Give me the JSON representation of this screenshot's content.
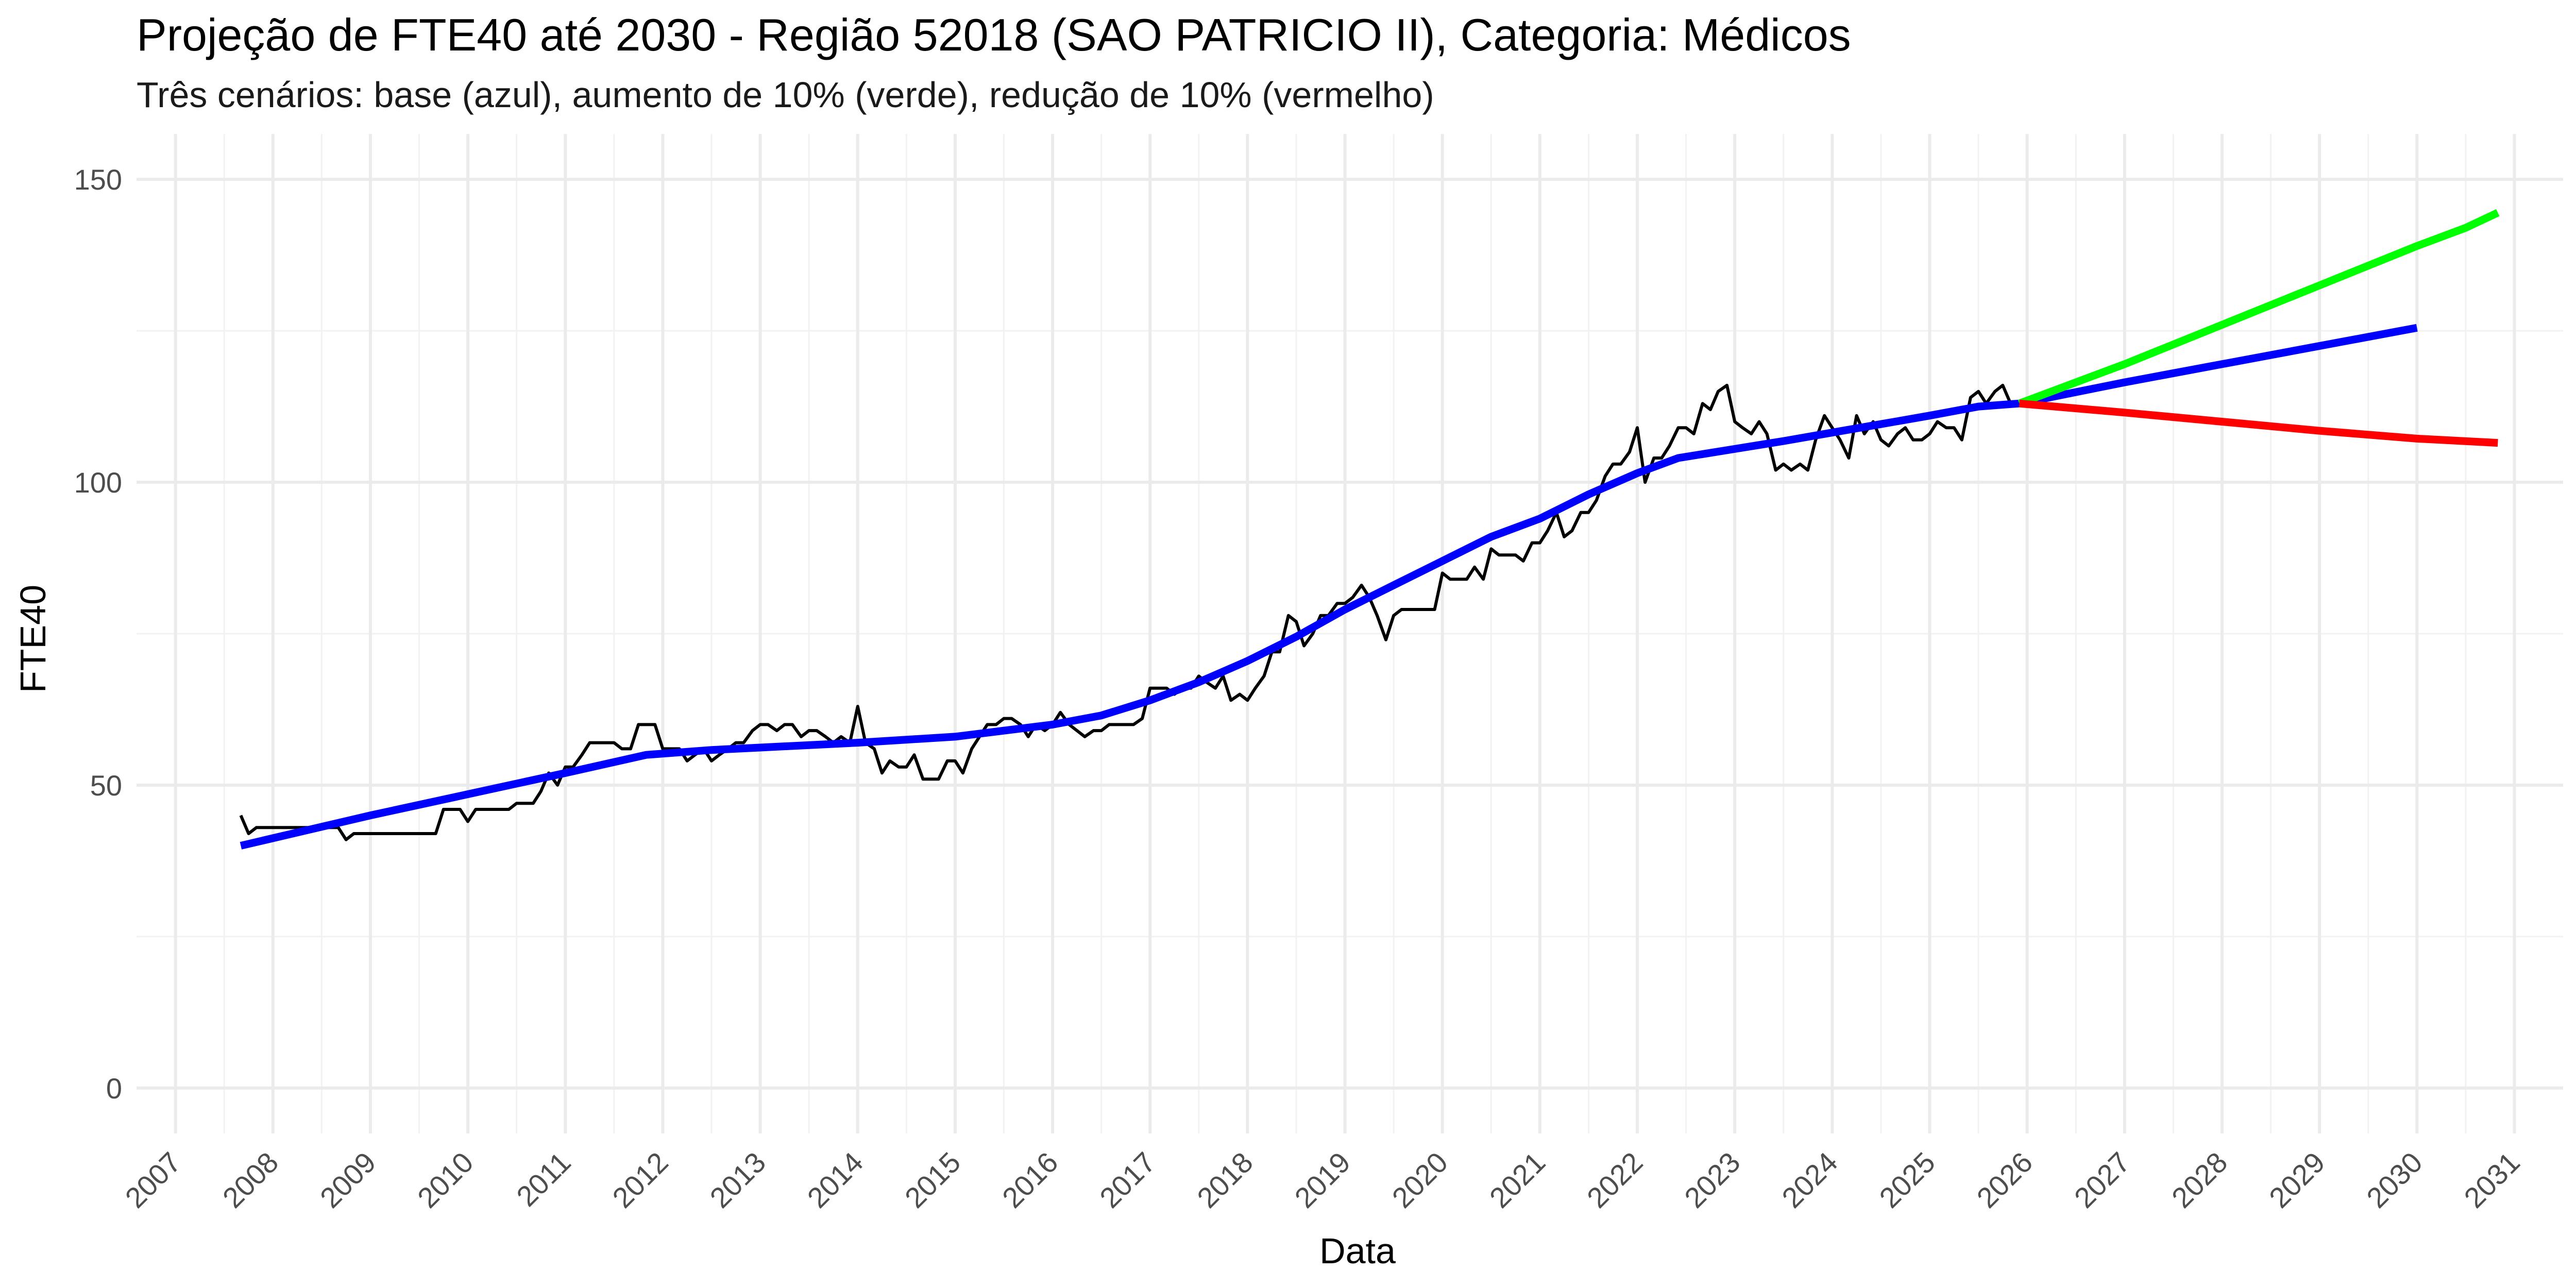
{
  "chart_data": {
    "type": "line",
    "title": "Projeção de FTE40 até 2030 - Região 52018 (SAO PATRICIO II), Categoria: Médicos",
    "subtitle": "Três cenários: base (azul), aumento de 10% (verde), redução de 10% (vermelho)",
    "xlabel": "Data",
    "ylabel": "FTE40",
    "xlim": [
      2006.6,
      2031.5
    ],
    "ylim": [
      -7.5,
      157.5
    ],
    "x_ticks": [
      "2007",
      "2008",
      "2009",
      "2010",
      "2011",
      "2012",
      "2013",
      "2014",
      "2015",
      "2016",
      "2017",
      "2018",
      "2019",
      "2020",
      "2021",
      "2022",
      "2023",
      "2024",
      "2025",
      "2026",
      "2027",
      "2028",
      "2029",
      "2030",
      "2031"
    ],
    "y_ticks": [
      0,
      50,
      100,
      150
    ],
    "grid": true,
    "legend": "none",
    "series": [
      {
        "color": "#000000",
        "points": [
          [
            2007.67,
            45
          ],
          [
            2007.75,
            42
          ],
          [
            2007.83,
            43
          ],
          [
            2007.92,
            43
          ],
          [
            2008.0,
            43
          ],
          [
            2008.08,
            43
          ],
          [
            2008.17,
            43
          ],
          [
            2008.25,
            43
          ],
          [
            2008.33,
            43
          ],
          [
            2008.42,
            43
          ],
          [
            2008.5,
            43
          ],
          [
            2008.58,
            43
          ],
          [
            2008.67,
            43
          ],
          [
            2008.75,
            41
          ],
          [
            2008.83,
            42
          ],
          [
            2008.92,
            42
          ],
          [
            2009.0,
            42
          ],
          [
            2009.08,
            42
          ],
          [
            2009.17,
            42
          ],
          [
            2009.25,
            42
          ],
          [
            2009.33,
            42
          ],
          [
            2009.42,
            42
          ],
          [
            2009.5,
            42
          ],
          [
            2009.58,
            42
          ],
          [
            2009.67,
            42
          ],
          [
            2009.75,
            46
          ],
          [
            2009.83,
            46
          ],
          [
            2009.92,
            46
          ],
          [
            2010.0,
            44
          ],
          [
            2010.08,
            46
          ],
          [
            2010.17,
            46
          ],
          [
            2010.25,
            46
          ],
          [
            2010.33,
            46
          ],
          [
            2010.42,
            46
          ],
          [
            2010.5,
            47
          ],
          [
            2010.58,
            47
          ],
          [
            2010.67,
            47
          ],
          [
            2010.75,
            49
          ],
          [
            2010.83,
            52
          ],
          [
            2010.92,
            50
          ],
          [
            2011.0,
            53
          ],
          [
            2011.08,
            53
          ],
          [
            2011.17,
            55
          ],
          [
            2011.25,
            57
          ],
          [
            2011.33,
            57
          ],
          [
            2011.42,
            57
          ],
          [
            2011.5,
            57
          ],
          [
            2011.58,
            56
          ],
          [
            2011.67,
            56
          ],
          [
            2011.75,
            60
          ],
          [
            2011.83,
            60
          ],
          [
            2011.92,
            60
          ],
          [
            2012.0,
            56
          ],
          [
            2012.08,
            56
          ],
          [
            2012.17,
            56
          ],
          [
            2012.25,
            54
          ],
          [
            2012.33,
            55
          ],
          [
            2012.42,
            56
          ],
          [
            2012.5,
            54
          ],
          [
            2012.58,
            55
          ],
          [
            2012.67,
            56
          ],
          [
            2012.75,
            57
          ],
          [
            2012.83,
            57
          ],
          [
            2012.92,
            59
          ],
          [
            2013.0,
            60
          ],
          [
            2013.08,
            60
          ],
          [
            2013.17,
            59
          ],
          [
            2013.25,
            60
          ],
          [
            2013.33,
            60
          ],
          [
            2013.42,
            58
          ],
          [
            2013.5,
            59
          ],
          [
            2013.58,
            59
          ],
          [
            2013.67,
            58
          ],
          [
            2013.75,
            57
          ],
          [
            2013.83,
            58
          ],
          [
            2013.92,
            57
          ],
          [
            2014.0,
            63
          ],
          [
            2014.08,
            57
          ],
          [
            2014.17,
            56
          ],
          [
            2014.25,
            52
          ],
          [
            2014.33,
            54
          ],
          [
            2014.42,
            53
          ],
          [
            2014.5,
            53
          ],
          [
            2014.58,
            55
          ],
          [
            2014.67,
            51
          ],
          [
            2014.75,
            51
          ],
          [
            2014.83,
            51
          ],
          [
            2014.92,
            54
          ],
          [
            2015.0,
            54
          ],
          [
            2015.08,
            52
          ],
          [
            2015.17,
            56
          ],
          [
            2015.25,
            58
          ],
          [
            2015.33,
            60
          ],
          [
            2015.42,
            60
          ],
          [
            2015.5,
            61
          ],
          [
            2015.58,
            61
          ],
          [
            2015.67,
            60
          ],
          [
            2015.75,
            58
          ],
          [
            2015.83,
            60
          ],
          [
            2015.92,
            59
          ],
          [
            2016.0,
            60
          ],
          [
            2016.08,
            62
          ],
          [
            2016.17,
            60
          ],
          [
            2016.25,
            59
          ],
          [
            2016.33,
            58
          ],
          [
            2016.42,
            59
          ],
          [
            2016.5,
            59
          ],
          [
            2016.58,
            60
          ],
          [
            2016.67,
            60
          ],
          [
            2016.75,
            60
          ],
          [
            2016.83,
            60
          ],
          [
            2016.92,
            61
          ],
          [
            2017.0,
            66
          ],
          [
            2017.08,
            66
          ],
          [
            2017.17,
            66
          ],
          [
            2017.25,
            65
          ],
          [
            2017.33,
            66
          ],
          [
            2017.42,
            66
          ],
          [
            2017.5,
            68
          ],
          [
            2017.58,
            67
          ],
          [
            2017.67,
            66
          ],
          [
            2017.75,
            68
          ],
          [
            2017.83,
            64
          ],
          [
            2017.92,
            65
          ],
          [
            2018.0,
            64
          ],
          [
            2018.08,
            66
          ],
          [
            2018.17,
            68
          ],
          [
            2018.25,
            72
          ],
          [
            2018.33,
            72
          ],
          [
            2018.42,
            78
          ],
          [
            2018.5,
            77
          ],
          [
            2018.58,
            73
          ],
          [
            2018.67,
            75
          ],
          [
            2018.75,
            78
          ],
          [
            2018.83,
            78
          ],
          [
            2018.92,
            80
          ],
          [
            2019.0,
            80
          ],
          [
            2019.08,
            81
          ],
          [
            2019.17,
            83
          ],
          [
            2019.25,
            81
          ],
          [
            2019.33,
            78
          ],
          [
            2019.42,
            74
          ],
          [
            2019.5,
            78
          ],
          [
            2019.58,
            79
          ],
          [
            2019.67,
            79
          ],
          [
            2019.75,
            79
          ],
          [
            2019.83,
            79
          ],
          [
            2019.92,
            79
          ],
          [
            2020.0,
            85
          ],
          [
            2020.08,
            84
          ],
          [
            2020.17,
            84
          ],
          [
            2020.25,
            84
          ],
          [
            2020.33,
            86
          ],
          [
            2020.42,
            84
          ],
          [
            2020.5,
            89
          ],
          [
            2020.58,
            88
          ],
          [
            2020.67,
            88
          ],
          [
            2020.75,
            88
          ],
          [
            2020.83,
            87
          ],
          [
            2020.92,
            90
          ],
          [
            2021.0,
            90
          ],
          [
            2021.08,
            92
          ],
          [
            2021.17,
            95
          ],
          [
            2021.25,
            91
          ],
          [
            2021.33,
            92
          ],
          [
            2021.42,
            95
          ],
          [
            2021.5,
            95
          ],
          [
            2021.58,
            97
          ],
          [
            2021.67,
            101
          ],
          [
            2021.75,
            103
          ],
          [
            2021.83,
            103
          ],
          [
            2021.92,
            105
          ],
          [
            2022.0,
            109
          ],
          [
            2022.08,
            100
          ],
          [
            2022.17,
            104
          ],
          [
            2022.25,
            104
          ],
          [
            2022.33,
            106
          ],
          [
            2022.42,
            109
          ],
          [
            2022.5,
            109
          ],
          [
            2022.58,
            108
          ],
          [
            2022.67,
            113
          ],
          [
            2022.75,
            112
          ],
          [
            2022.83,
            115
          ],
          [
            2022.92,
            116
          ],
          [
            2023.0,
            110
          ],
          [
            2023.08,
            109
          ],
          [
            2023.17,
            108
          ],
          [
            2023.25,
            110
          ],
          [
            2023.33,
            108
          ],
          [
            2023.42,
            102
          ],
          [
            2023.5,
            103
          ],
          [
            2023.58,
            102
          ],
          [
            2023.67,
            103
          ],
          [
            2023.75,
            102
          ],
          [
            2023.83,
            107
          ],
          [
            2023.92,
            111
          ],
          [
            2024.0,
            109
          ],
          [
            2024.08,
            107
          ],
          [
            2024.17,
            104
          ],
          [
            2024.25,
            111
          ],
          [
            2024.33,
            108
          ],
          [
            2024.42,
            110
          ],
          [
            2024.5,
            107
          ],
          [
            2024.58,
            106
          ],
          [
            2024.67,
            108
          ],
          [
            2024.75,
            109
          ],
          [
            2024.83,
            107
          ],
          [
            2024.92,
            107
          ],
          [
            2025.0,
            108
          ],
          [
            2025.08,
            110
          ],
          [
            2025.17,
            109
          ],
          [
            2025.25,
            109
          ],
          [
            2025.33,
            107
          ],
          [
            2025.42,
            114
          ],
          [
            2025.5,
            115
          ],
          [
            2025.58,
            113
          ],
          [
            2025.67,
            115
          ],
          [
            2025.75,
            116
          ],
          [
            2025.83,
            113
          ]
        ]
      },
      {
        "color": "#0000ff",
        "points": [
          [
            2007.67,
            40
          ],
          [
            2009.0,
            45
          ],
          [
            2010.0,
            48.5
          ],
          [
            2011.0,
            52
          ],
          [
            2011.83,
            55
          ],
          [
            2012.5,
            55.8
          ],
          [
            2013.0,
            56.2
          ],
          [
            2014.0,
            57
          ],
          [
            2015.0,
            58
          ],
          [
            2016.0,
            60
          ],
          [
            2016.5,
            61.5
          ],
          [
            2017.0,
            64
          ],
          [
            2017.5,
            67
          ],
          [
            2018.0,
            70.5
          ],
          [
            2018.5,
            74.5
          ],
          [
            2019.0,
            79
          ],
          [
            2019.5,
            83
          ],
          [
            2020.0,
            87
          ],
          [
            2020.5,
            91
          ],
          [
            2021.0,
            94
          ],
          [
            2021.5,
            98
          ],
          [
            2022.0,
            101.5
          ],
          [
            2022.42,
            104
          ],
          [
            2023.0,
            105.5
          ],
          [
            2023.5,
            106.8
          ],
          [
            2024.0,
            108.2
          ],
          [
            2024.5,
            109.6
          ],
          [
            2025.0,
            111
          ],
          [
            2025.5,
            112.5
          ],
          [
            2025.92,
            113
          ],
          [
            2027.0,
            116.5
          ],
          [
            2028.0,
            119.5
          ],
          [
            2029.0,
            122.5
          ],
          [
            2030.0,
            125.5
          ]
        ]
      },
      {
        "color": "#00ff00",
        "points": [
          [
            2025.92,
            113
          ],
          [
            2027.0,
            119.5
          ],
          [
            2028.0,
            126
          ],
          [
            2029.0,
            132.5
          ],
          [
            2030.0,
            139
          ],
          [
            2030.5,
            142
          ],
          [
            2030.83,
            144.5
          ]
        ]
      },
      {
        "color": "#ff0000",
        "points": [
          [
            2025.92,
            113
          ],
          [
            2027.0,
            111.5
          ],
          [
            2028.0,
            110
          ],
          [
            2029.0,
            108.5
          ],
          [
            2030.0,
            107.2
          ],
          [
            2030.83,
            106.5
          ]
        ]
      }
    ]
  }
}
